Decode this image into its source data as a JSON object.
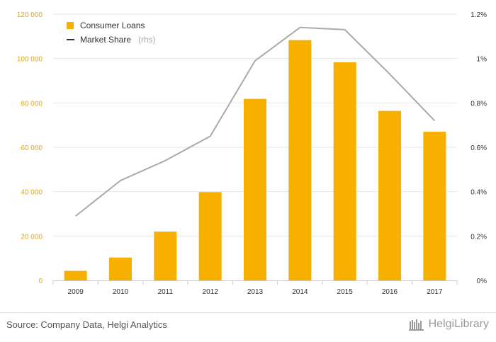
{
  "chart_data": {
    "type": "bar",
    "categories": [
      "2009",
      "2010",
      "2011",
      "2012",
      "2013",
      "2014",
      "2015",
      "2016",
      "2017"
    ],
    "series": [
      {
        "name": "Consumer Loans",
        "type": "bar",
        "axis": "left",
        "color": "#f7b000",
        "values": [
          4300,
          10300,
          22000,
          39800,
          81800,
          108300,
          98300,
          76400,
          67000
        ]
      },
      {
        "name": "Market Share",
        "type": "line",
        "axis": "right",
        "color": "#aaaaaa",
        "values": [
          0.29,
          0.45,
          0.54,
          0.65,
          0.99,
          1.14,
          1.13,
          0.93,
          0.72
        ]
      }
    ],
    "y_left": {
      "min": 0,
      "max": 120000,
      "ticks": [
        "0",
        "20 000",
        "40 000",
        "60 000",
        "80 000",
        "100 000",
        "120 000"
      ]
    },
    "y_right": {
      "min": 0,
      "max": 1.2,
      "ticks": [
        "0%",
        "0.2%",
        "0.4%",
        "0.6%",
        "0.8%",
        "1%",
        "1.2%"
      ]
    },
    "legend": {
      "position": "top-left",
      "items": [
        {
          "label": "Consumer Loans",
          "symbol": "square",
          "color": "#f7b000"
        },
        {
          "label": "Market Share",
          "suffix": "(rhs)",
          "symbol": "line",
          "color": "#333333"
        }
      ]
    },
    "grid": true
  },
  "footer": {
    "source": "Source: Company Data, Helgi Analytics",
    "brand": "HelgiLibrary"
  }
}
